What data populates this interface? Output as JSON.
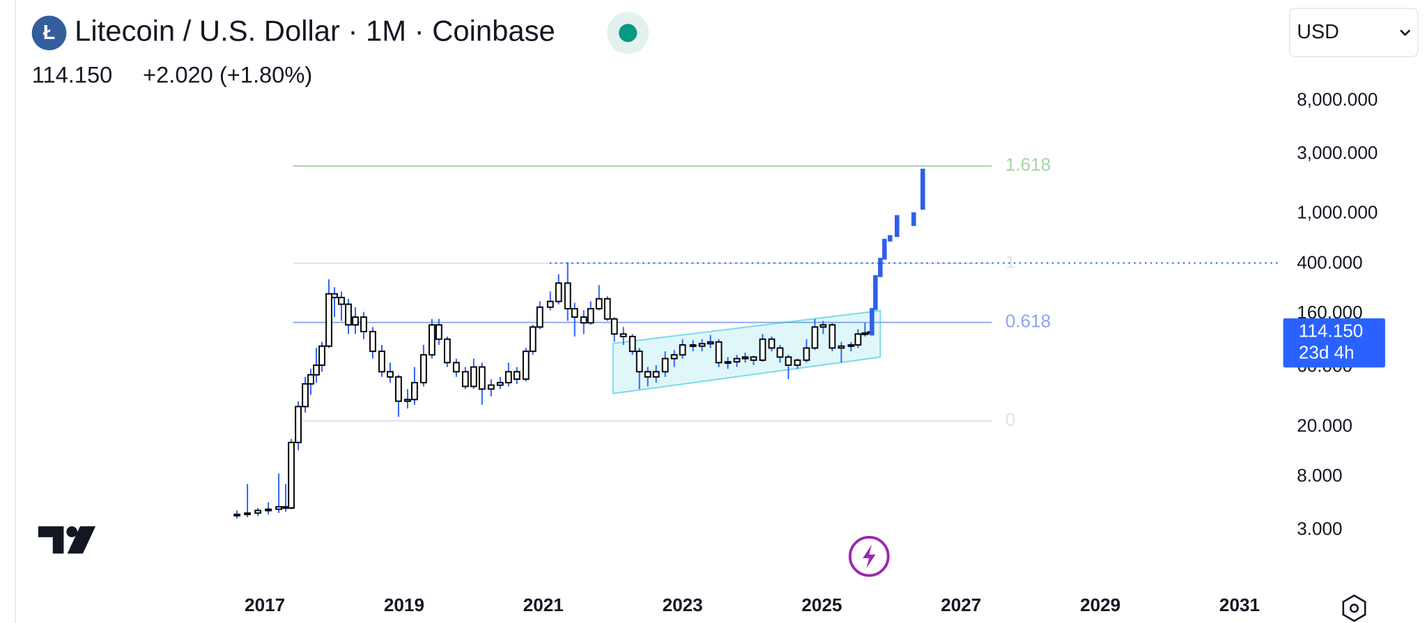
{
  "chart_data": {
    "type": "candlestick",
    "title": "Litecoin / U.S. Dollar · 1M · Coinbase",
    "last": "114.150",
    "change": "+2.020 (+1.80%)",
    "currency": "USD",
    "countdown": "23d 4h",
    "log_scale": true,
    "xlim": [
      2013.196,
      2031.627
    ],
    "xticks": [
      2017,
      2019,
      2021,
      2023,
      2025,
      2027,
      2029,
      2031
    ],
    "ylim": [
      1.14,
      50600
    ],
    "yticks": [
      {
        "value": 3,
        "label": "3.000"
      },
      {
        "value": 8,
        "label": "8.000"
      },
      {
        "value": 20,
        "label": "20.000"
      },
      {
        "value": 60,
        "label": "60.000"
      },
      {
        "value": 160,
        "label": "160.000"
      },
      {
        "value": 400,
        "label": "400.000"
      },
      {
        "value": 1000,
        "label": "1,000.000"
      },
      {
        "value": 3000,
        "label": "3,000.000"
      },
      {
        "value": 8000,
        "label": "8,000.000"
      }
    ],
    "body_color": "#ffffff",
    "border_color": "#000000",
    "wick_color": "#2962ff",
    "x": [
      2016.6,
      2016.75,
      2016.9,
      2017.05,
      2017.2,
      2017.3,
      2017.38,
      2017.48,
      2017.58,
      2017.66,
      2017.74,
      2017.82,
      2017.92,
      2018.0,
      2018.1,
      2018.2,
      2018.3,
      2018.42,
      2018.55,
      2018.68,
      2018.8,
      2018.92,
      2019.05,
      2019.15,
      2019.28,
      2019.4,
      2019.5,
      2019.62,
      2019.75,
      2019.88,
      2020.0,
      2020.12,
      2020.25,
      2020.38,
      2020.5,
      2020.62,
      2020.75,
      2020.85,
      2020.95,
      2021.1,
      2021.22,
      2021.35,
      2021.45,
      2021.58,
      2021.68,
      2021.8,
      2021.92,
      2022.02,
      2022.15,
      2022.28,
      2022.38,
      2022.5,
      2022.62,
      2022.75,
      2022.88,
      2023.0,
      2023.15,
      2023.28,
      2023.4,
      2023.52,
      2023.65,
      2023.78,
      2023.9,
      2024.02,
      2024.15,
      2024.28,
      2024.4,
      2024.52,
      2024.65,
      2024.78,
      2024.9,
      2025.02,
      2025.15,
      2025.28,
      2025.42,
      2025.52,
      2025.62,
      2025.7
    ],
    "open": [
      4,
      4,
      4.1,
      4.3,
      4.4,
      4.6,
      4.5,
      15,
      29,
      44,
      52,
      62,
      88,
      230,
      215,
      190,
      130,
      150,
      115,
      80,
      55,
      50,
      32,
      33,
      45,
      75,
      130,
      100,
      65,
      55,
      42,
      60,
      40,
      43,
      45,
      55,
      48,
      80,
      125,
      180,
      200,
      280,
      175,
      150,
      135,
      175,
      210,
      145,
      110,
      105,
      80,
      55,
      50,
      55,
      70,
      75,
      90,
      88,
      92,
      95,
      65,
      66,
      70,
      72,
      68,
      100,
      85,
      72,
      62,
      68,
      85,
      125,
      130,
      85,
      88,
      90,
      110,
      112
    ],
    "high": [
      4.3,
      7,
      4.5,
      5,
      8.5,
      7,
      16,
      32,
      50,
      58,
      85,
      95,
      300,
      260,
      240,
      210,
      180,
      165,
      125,
      90,
      65,
      52,
      40,
      60,
      90,
      145,
      145,
      105,
      70,
      60,
      70,
      65,
      48,
      50,
      65,
      60,
      85,
      130,
      200,
      240,
      330,
      410,
      195,
      170,
      200,
      270,
      220,
      150,
      125,
      110,
      85,
      60,
      62,
      80,
      82,
      100,
      98,
      100,
      108,
      100,
      72,
      75,
      78,
      74,
      110,
      105,
      90,
      75,
      70,
      100,
      145,
      140,
      135,
      95,
      95,
      120,
      135,
      120
    ],
    "low": [
      3.7,
      3.8,
      3.9,
      4,
      4.1,
      4.2,
      4.4,
      13,
      26,
      36,
      45,
      55,
      85,
      150,
      140,
      110,
      110,
      100,
      70,
      50,
      45,
      24,
      28,
      30,
      42,
      70,
      90,
      60,
      50,
      40,
      40,
      30,
      35,
      40,
      42,
      44,
      46,
      75,
      120,
      170,
      190,
      140,
      105,
      110,
      130,
      170,
      140,
      95,
      90,
      75,
      40,
      42,
      45,
      50,
      60,
      70,
      80,
      80,
      85,
      60,
      58,
      60,
      65,
      62,
      66,
      80,
      65,
      48,
      58,
      65,
      82,
      110,
      80,
      65,
      80,
      85,
      105,
      108
    ],
    "close": [
      4,
      4.1,
      4.3,
      4.4,
      4.6,
      4.5,
      15,
      29,
      44,
      52,
      62,
      88,
      230,
      215,
      190,
      130,
      150,
      115,
      80,
      55,
      50,
      32,
      33,
      45,
      75,
      130,
      100,
      65,
      55,
      42,
      60,
      40,
      43,
      45,
      55,
      48,
      80,
      125,
      180,
      200,
      280,
      175,
      150,
      135,
      175,
      210,
      145,
      110,
      105,
      80,
      55,
      50,
      55,
      70,
      75,
      90,
      88,
      92,
      95,
      65,
      66,
      70,
      72,
      68,
      100,
      85,
      72,
      62,
      68,
      85,
      125,
      130,
      85,
      88,
      90,
      110,
      112,
      114.15
    ],
    "projection": {
      "color": "#2f5fe8",
      "x": [
        2025.72,
        2025.77,
        2025.84,
        2025.9,
        2025.98,
        2026.08,
        2026.32,
        2026.45
      ],
      "low": [
        107,
        171,
        313,
        431,
        601,
        653,
        800,
        1079
      ],
      "high": [
        177,
        324,
        445,
        632,
        676,
        977,
        1028,
        2290
      ]
    },
    "levels_x": [
      2017.405,
      2027.44
    ],
    "levels": [
      {
        "label": "1.618",
        "value": 2410,
        "color": "#a5d6a7"
      },
      {
        "label": "1",
        "value": 403,
        "color": "#e0e3eb"
      },
      {
        "label": "0.618",
        "value": 136,
        "color": "#8ea4f2"
      },
      {
        "label": "0",
        "value": 22.3,
        "color": "#e0e3eb"
      }
    ],
    "channel": {
      "color": "#00bcd4",
      "x": [
        2022.0,
        2025.84
      ],
      "upper": [
        92.5,
        169
      ],
      "lower": [
        36.8,
        71.9
      ]
    },
    "horizontal_ray": {
      "x": 2021.09,
      "value": 405,
      "color": "#2962ff"
    },
    "price_label_color": "#2962ff"
  }
}
